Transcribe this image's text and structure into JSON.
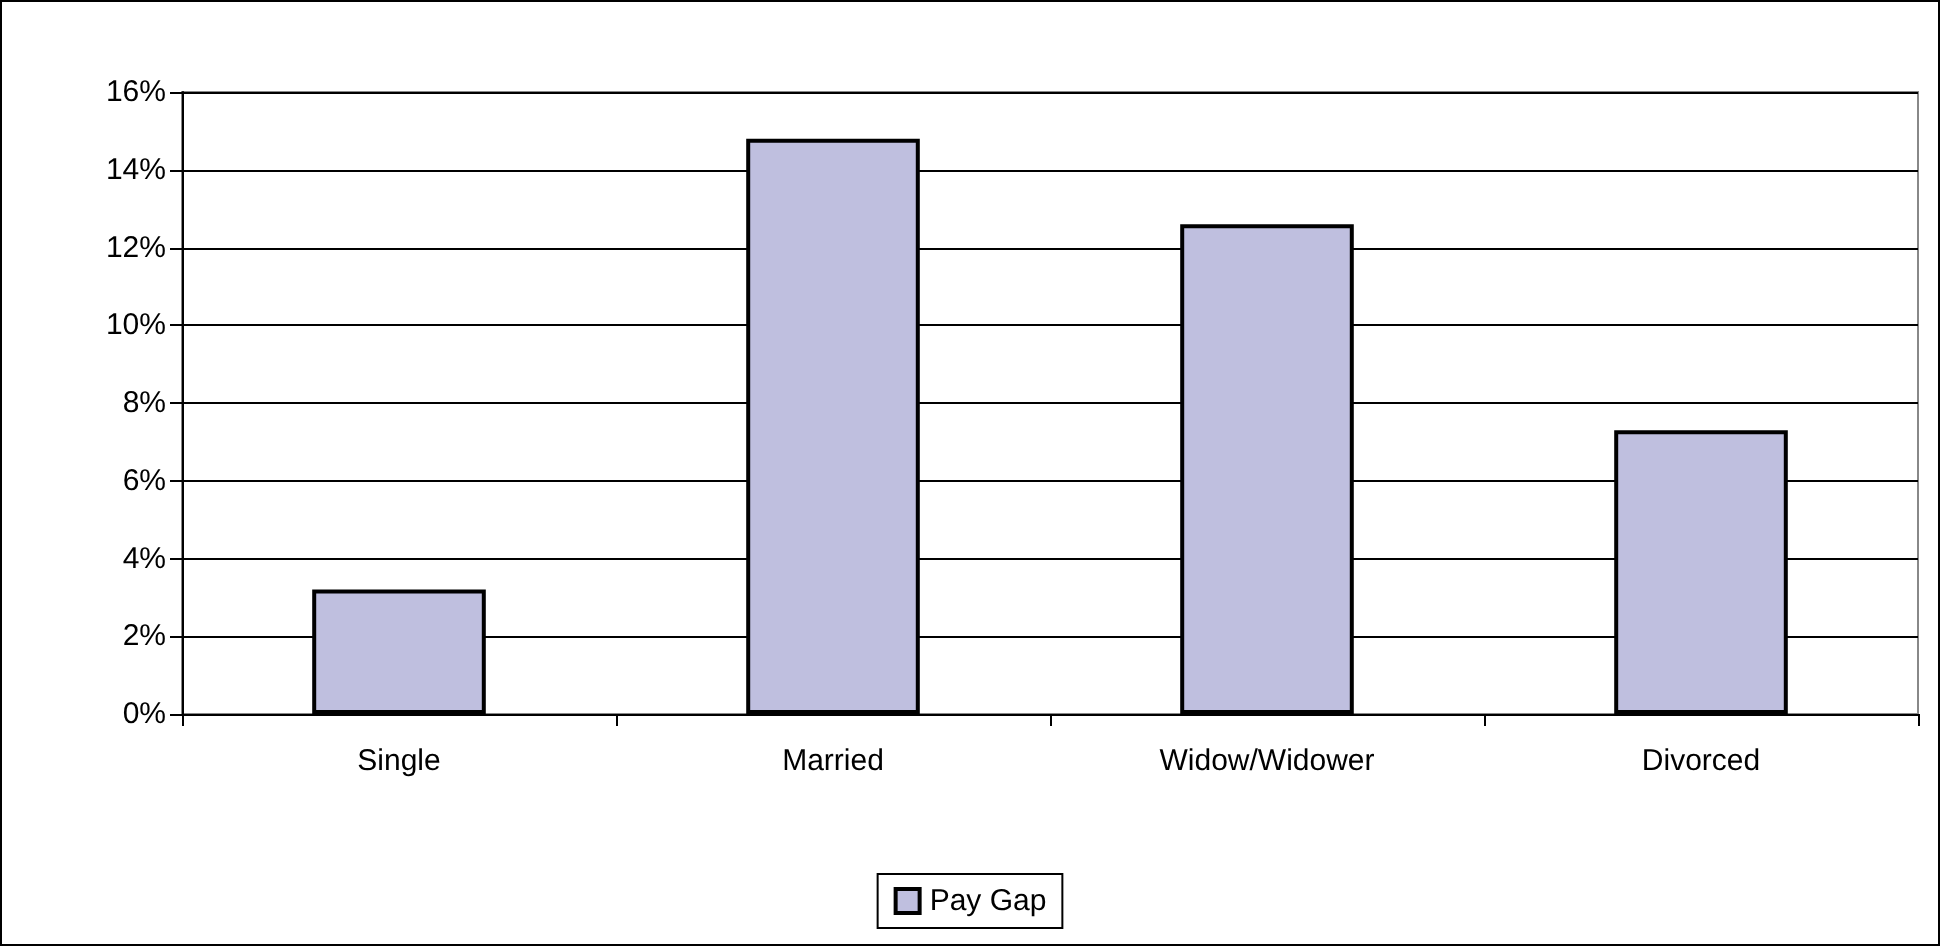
{
  "chart_data": {
    "type": "bar",
    "categories": [
      "Single",
      "Married",
      "Widow/Widower",
      "Divorced"
    ],
    "series": [
      {
        "name": "Pay Gap",
        "color": "#bfbfdf",
        "values": [
          3.2,
          14.8,
          12.6,
          7.3
        ]
      }
    ],
    "ylim": [
      0,
      16
    ],
    "yticks": [
      {
        "value": 0,
        "label": "0%"
      },
      {
        "value": 2,
        "label": "2%"
      },
      {
        "value": 4,
        "label": "4%"
      },
      {
        "value": 6,
        "label": "6%"
      },
      {
        "value": 8,
        "label": "8%"
      },
      {
        "value": 10,
        "label": "10%"
      },
      {
        "value": 12,
        "label": "12%"
      },
      {
        "value": 14,
        "label": "14%"
      },
      {
        "value": 16,
        "label": "16%"
      }
    ],
    "grid": "y",
    "legend": "bottom"
  }
}
